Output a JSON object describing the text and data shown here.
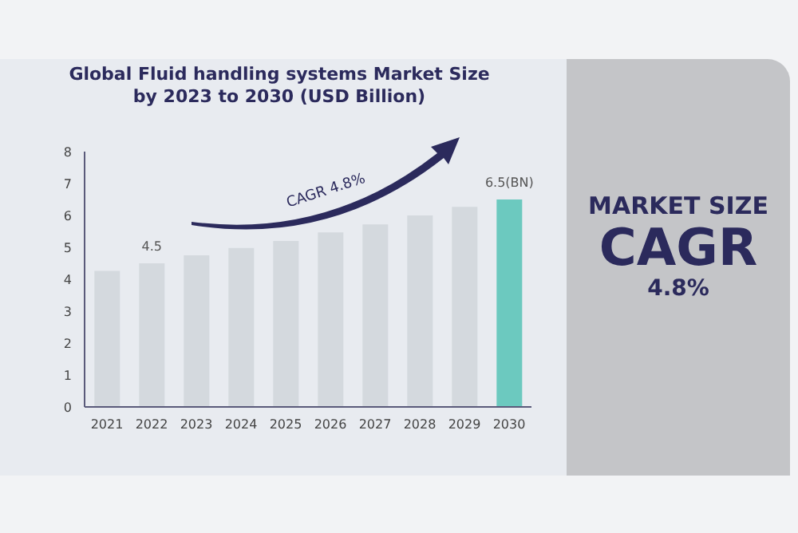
{
  "chart_data": {
    "type": "bar",
    "title": "Global Fluid handling systems Market Size by 2023 to 2030 (USD Billion)",
    "categories": [
      "2021",
      "2022",
      "2023",
      "2024",
      "2025",
      "2026",
      "2027",
      "2028",
      "2029",
      "2030"
    ],
    "values": [
      4.26,
      4.5,
      4.75,
      4.98,
      5.2,
      5.47,
      5.72,
      6.0,
      6.27,
      6.5
    ],
    "colors": [
      "#d4d9de",
      "#d4d9de",
      "#d4d9de",
      "#d4d9de",
      "#d4d9de",
      "#d4d9de",
      "#d4d9de",
      "#d4d9de",
      "#d4d9de",
      "#6cc9bf"
    ],
    "value_labels": [
      null,
      "4.5",
      null,
      null,
      null,
      null,
      null,
      null,
      null,
      "6.5(BN)"
    ],
    "ylim": [
      0,
      8
    ],
    "yticks": [
      0,
      1,
      2,
      3,
      4,
      5,
      6,
      7,
      8
    ],
    "annotations": [
      "CAGR 4.8%",
      "MARKET SIZE",
      "CAGR",
      "4.8%"
    ]
  }
}
